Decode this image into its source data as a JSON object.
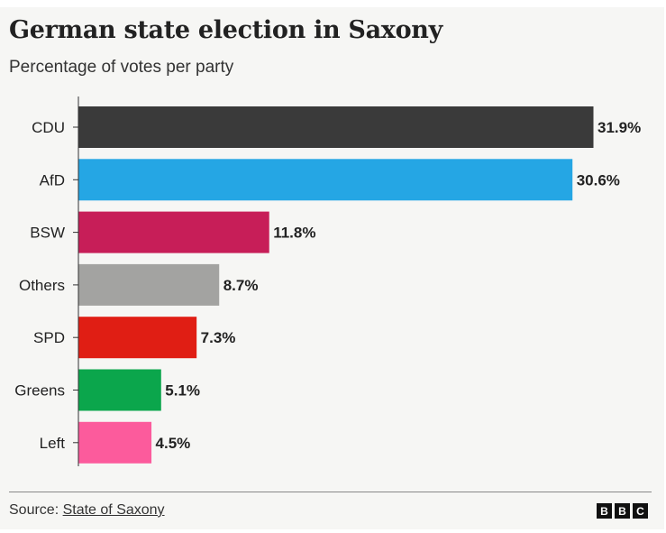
{
  "header": {
    "title": "German state election in Saxony",
    "subtitle": "Percentage of votes per party"
  },
  "footer": {
    "source_prefix": "Source: ",
    "source_link": "State of Saxony",
    "logo_letters": [
      "B",
      "B",
      "C"
    ]
  },
  "chart_data": {
    "type": "bar",
    "orientation": "horizontal",
    "title": "German state election in Saxony",
    "subtitle": "Percentage of votes per party",
    "categories": [
      "CDU",
      "AfD",
      "BSW",
      "Others",
      "SPD",
      "Greens",
      "Left"
    ],
    "values": [
      31.9,
      30.6,
      11.8,
      8.7,
      7.3,
      5.1,
      4.5
    ],
    "value_labels": [
      "31.9%",
      "30.6%",
      "11.8%",
      "8.7%",
      "7.3%",
      "5.1%",
      "4.5%"
    ],
    "colors": [
      "#3a3a3a",
      "#25a6e4",
      "#c71e58",
      "#a3a3a1",
      "#e01e14",
      "#0ba64c",
      "#fc5b9c"
    ],
    "unit": "%",
    "xlim": [
      0,
      31.9
    ],
    "grid": false,
    "legend": "none"
  }
}
